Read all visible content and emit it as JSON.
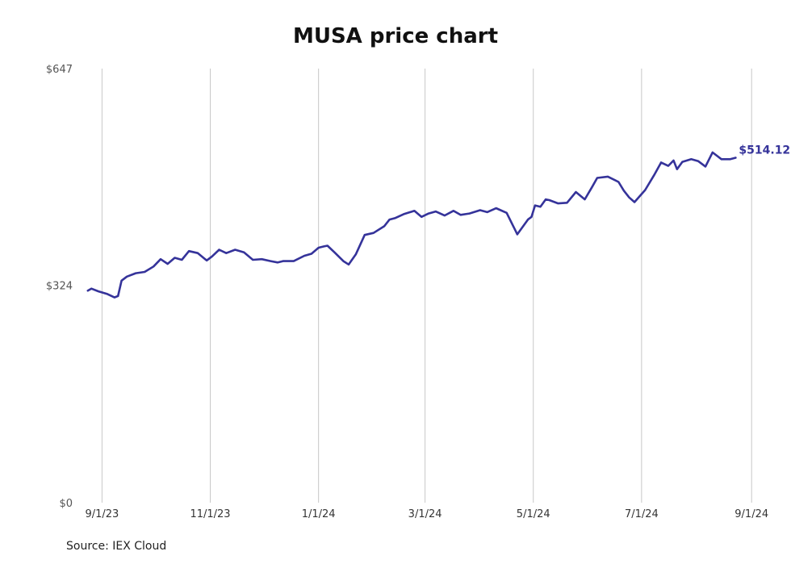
{
  "chart_data": {
    "type": "line",
    "title": "MUSA price chart",
    "source": "Source: IEX Cloud",
    "ylim": [
      0,
      647
    ],
    "y_ticks": [
      {
        "value": 0,
        "label": "$0"
      },
      {
        "value": 324,
        "label": "$324"
      },
      {
        "value": 647,
        "label": "$647"
      }
    ],
    "x_range": [
      "2023-08-20",
      "2024-09-05"
    ],
    "x_ticks": [
      {
        "date": "2023-09-01",
        "label": "9/1/23"
      },
      {
        "date": "2023-11-01",
        "label": "11/1/23"
      },
      {
        "date": "2024-01-01",
        "label": "1/1/24"
      },
      {
        "date": "2024-03-01",
        "label": "3/1/24"
      },
      {
        "date": "2024-05-01",
        "label": "5/1/24"
      },
      {
        "date": "2024-07-01",
        "label": "7/1/24"
      },
      {
        "date": "2024-09-01",
        "label": "9/1/24"
      }
    ],
    "grid": "vertical",
    "line_color": "#35339a",
    "last_value_label": "$514.12",
    "series": [
      {
        "x": [
          "2023-08-24",
          "2023-08-26",
          "2023-08-30",
          "2023-09-04",
          "2023-09-08",
          "2023-09-10",
          "2023-09-12",
          "2023-09-15",
          "2023-09-20",
          "2023-09-25",
          "2023-09-30",
          "2023-10-04",
          "2023-10-08",
          "2023-10-12",
          "2023-10-16",
          "2023-10-20",
          "2023-10-25",
          "2023-10-30",
          "2023-11-02",
          "2023-11-06",
          "2023-11-10",
          "2023-11-15",
          "2023-11-20",
          "2023-11-25",
          "2023-11-30",
          "2023-12-05",
          "2023-12-09",
          "2023-12-12",
          "2023-12-18",
          "2023-12-24",
          "2023-12-28",
          "2024-01-01",
          "2024-01-04",
          "2024-01-06",
          "2024-01-10",
          "2024-01-15",
          "2024-01-18",
          "2024-01-22",
          "2024-01-27",
          "2024-02-01",
          "2024-02-07",
          "2024-02-10",
          "2024-02-13",
          "2024-02-18",
          "2024-02-24",
          "2024-02-28",
          "2024-03-03",
          "2024-03-07",
          "2024-03-12",
          "2024-03-17",
          "2024-03-21",
          "2024-03-26",
          "2024-04-01",
          "2024-04-05",
          "2024-04-10",
          "2024-04-16",
          "2024-04-22",
          "2024-04-28",
          "2024-04-30",
          "2024-05-02",
          "2024-05-05",
          "2024-05-08",
          "2024-05-10",
          "2024-05-15",
          "2024-05-20",
          "2024-05-25",
          "2024-05-30",
          "2024-06-03",
          "2024-06-06",
          "2024-06-12",
          "2024-06-18",
          "2024-06-21",
          "2024-06-24",
          "2024-06-27",
          "2024-07-03",
          "2024-07-08",
          "2024-07-12",
          "2024-07-16",
          "2024-07-19",
          "2024-07-21",
          "2024-07-24",
          "2024-07-29",
          "2024-08-02",
          "2024-08-06",
          "2024-08-10",
          "2024-08-15",
          "2024-08-20",
          "2024-08-23"
        ],
        "values": [
          316,
          319,
          315,
          311,
          306,
          308,
          331,
          337,
          342,
          344,
          352,
          363,
          356,
          365,
          362,
          375,
          372,
          361,
          367,
          377,
          372,
          377,
          373,
          362,
          363,
          360,
          358,
          360,
          360,
          368,
          371,
          380,
          382,
          383,
          373,
          360,
          355,
          370,
          399,
          402,
          412,
          422,
          424,
          430,
          435,
          426,
          431,
          434,
          428,
          435,
          429,
          431,
          436,
          433,
          439,
          432,
          400,
          422,
          426,
          443,
          441,
          452,
          451,
          446,
          447,
          463,
          452,
          470,
          484,
          486,
          478,
          465,
          455,
          448,
          466,
          488,
          507,
          502,
          510,
          497,
          508,
          512,
          509,
          501,
          522,
          512,
          512,
          514.12
        ]
      }
    ]
  }
}
